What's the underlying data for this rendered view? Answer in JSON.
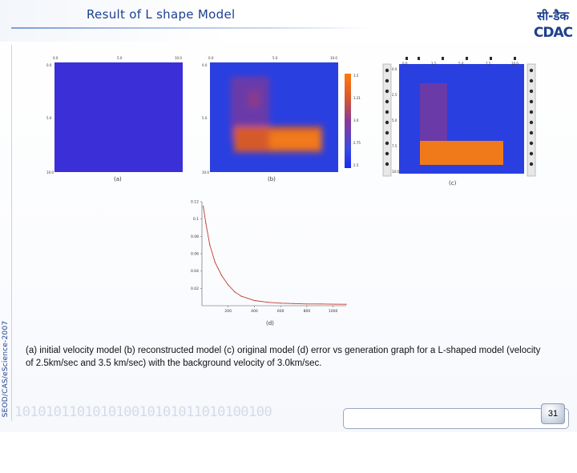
{
  "slide": {
    "title": "Result of L shape Model",
    "side_text": "SEOD/CAS/eScience-2007",
    "footer_digits": "101010110101010010101011010100100",
    "page_number": "31",
    "logo": {
      "devanagari": "सी-डैक",
      "latin": "CDAC"
    }
  },
  "panels": {
    "a": {
      "label": "(a)",
      "x_ticks": [
        "0.0",
        "5.0",
        "10.0"
      ],
      "y_ticks": [
        "0.0",
        "5.0",
        "10.0"
      ],
      "color": "#3b2fd8"
    },
    "b": {
      "label": "(b)",
      "x_ticks": [
        "0.0",
        "5.0",
        "10.0"
      ],
      "y_ticks": [
        "0.0",
        "5.0",
        "10.0"
      ]
    },
    "colorbar": {
      "ticks": [
        "3.5",
        "3.31",
        "3.0",
        "2.75",
        "2.5"
      ]
    },
    "c": {
      "label": "(c)",
      "x_ticks": [
        "0.0",
        "2.5",
        "5.0",
        "7.5",
        "10.0"
      ],
      "y_ticks": [
        "0.0",
        "2.5",
        "5.0",
        "7.5",
        "10.0"
      ]
    },
    "d": {
      "label": "(d)"
    }
  },
  "chart_data": {
    "type": "line",
    "x_ticks": [
      "200",
      "400",
      "600",
      "800",
      "1000"
    ],
    "y_ticks": [
      "0.12",
      "0.1",
      "0.08",
      "0.06",
      "0.04",
      "0.02"
    ],
    "xlim": [
      0,
      1100
    ],
    "ylim": [
      0,
      0.12
    ],
    "x": [
      10,
      30,
      60,
      100,
      150,
      200,
      250,
      300,
      400,
      500,
      600,
      700,
      800,
      900,
      1000,
      1100
    ],
    "y": [
      0.115,
      0.095,
      0.07,
      0.05,
      0.035,
      0.024,
      0.016,
      0.011,
      0.006,
      0.004,
      0.003,
      0.0025,
      0.002,
      0.002,
      0.0018,
      0.0017
    ],
    "line_color": "#c0392b"
  },
  "caption": "(a) initial velocity model (b) reconstructed model  (c) original model (d) error vs generation graph for a L-shaped model (velocity of 2.5km/sec and 3.5 km/sec) with the background velocity of 3.0km/sec."
}
